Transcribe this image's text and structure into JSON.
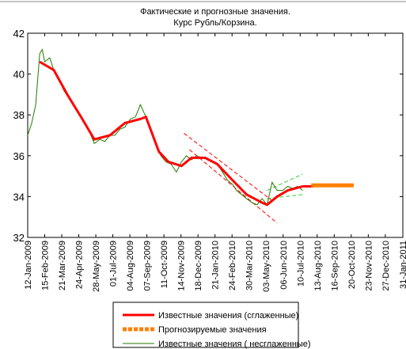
{
  "chart_data": {
    "type": "line",
    "title": [
      "Фактические и прогнозные значения.",
      "Курс Рубль/Корзина."
    ],
    "xlim": [
      "2009-01-12",
      "2011-01-31"
    ],
    "xticks": [
      {
        "value": "2009-01-12",
        "label": "12-Jan-2009"
      },
      {
        "value": "2009-02-15",
        "label": "15-Feb-2009"
      },
      {
        "value": "2009-03-21",
        "label": "21-Mar-2009"
      },
      {
        "value": "2009-04-24",
        "label": "24-Apr-2009"
      },
      {
        "value": "2009-05-28",
        "label": "28-May-2009"
      },
      {
        "value": "2009-07-01",
        "label": "01-Jul-2009"
      },
      {
        "value": "2009-08-04",
        "label": "04-Aug-2009"
      },
      {
        "value": "2009-09-07",
        "label": "07-Sep-2009"
      },
      {
        "value": "2009-10-11",
        "label": "11-Oct-2009"
      },
      {
        "value": "2009-11-14",
        "label": "14-Nov-2009"
      },
      {
        "value": "2009-12-18",
        "label": "18-Dec-2009"
      },
      {
        "value": "2010-01-21",
        "label": "21-Jan-2010"
      },
      {
        "value": "2010-02-24",
        "label": "24-Feb-2010"
      },
      {
        "value": "2010-03-30",
        "label": "30-Mar-2010"
      },
      {
        "value": "2010-05-03",
        "label": "03-May-2010"
      },
      {
        "value": "2010-06-06",
        "label": "06-Jun-2010"
      },
      {
        "value": "2010-07-10",
        "label": "10-Jul-2010"
      },
      {
        "value": "2010-08-13",
        "label": "13-Aug-2010"
      },
      {
        "value": "2010-09-16",
        "label": "16-Sep-2010"
      },
      {
        "value": "2010-10-20",
        "label": "20-Oct-2010"
      },
      {
        "value": "2010-11-23",
        "label": "23-Nov-2010"
      },
      {
        "value": "2010-12-27",
        "label": "27-Dec-2010"
      },
      {
        "value": "2011-01-31",
        "label": "31-Jan-2011"
      }
    ],
    "ylim": [
      32,
      42
    ],
    "yticks": [
      32,
      34,
      36,
      38,
      40,
      42
    ],
    "series": [
      {
        "name": "Известные значения (сглаженные)",
        "color": "#ff0000",
        "style": "solid",
        "width": 3,
        "x": [
          "2009-02-05",
          "2009-03-05",
          "2009-04-01",
          "2009-05-01",
          "2009-05-25",
          "2009-06-25",
          "2009-07-25",
          "2009-08-25",
          "2009-09-05",
          "2009-10-01",
          "2009-10-20",
          "2009-11-15",
          "2009-12-05",
          "2010-01-01",
          "2010-01-25",
          "2010-02-25",
          "2010-03-25",
          "2010-04-25",
          "2010-05-05",
          "2010-05-25",
          "2010-06-15",
          "2010-07-15",
          "2010-08-05"
        ],
        "values": [
          40.6,
          40.2,
          39,
          37.8,
          36.8,
          37,
          37.6,
          37.8,
          37.9,
          36.2,
          35.7,
          35.5,
          35.9,
          35.9,
          35.6,
          34.8,
          34.1,
          33.7,
          33.6,
          34,
          34.3,
          34.5,
          34.5
        ]
      },
      {
        "name": "Прогнозируемые значения",
        "color": "#ff8000",
        "style": "squares",
        "width": 5,
        "x": [
          "2010-08-05",
          "2010-08-12",
          "2010-08-19",
          "2010-08-26",
          "2010-09-02",
          "2010-09-09",
          "2010-09-16",
          "2010-09-23",
          "2010-09-30",
          "2010-10-07",
          "2010-10-14",
          "2010-10-21"
        ],
        "values": [
          34.55,
          34.55,
          34.55,
          34.55,
          34.55,
          34.55,
          34.55,
          34.55,
          34.55,
          34.55,
          34.55,
          34.55
        ]
      },
      {
        "name": "Известные значения ( несглаженные)",
        "color": "#217a00",
        "style": "solid",
        "width": 1,
        "x": [
          "2009-01-12",
          "2009-01-20",
          "2009-01-28",
          "2009-02-05",
          "2009-02-10",
          "2009-02-15",
          "2009-02-25",
          "2009-03-05",
          "2009-03-15",
          "2009-03-25",
          "2009-04-05",
          "2009-04-15",
          "2009-04-25",
          "2009-05-05",
          "2009-05-15",
          "2009-05-25",
          "2009-06-05",
          "2009-06-15",
          "2009-06-25",
          "2009-07-05",
          "2009-07-15",
          "2009-07-25",
          "2009-08-05",
          "2009-08-15",
          "2009-08-25",
          "2009-09-05",
          "2009-09-15",
          "2009-09-25",
          "2009-10-05",
          "2009-10-15",
          "2009-10-25",
          "2009-11-05",
          "2009-11-15",
          "2009-11-25",
          "2009-12-05",
          "2009-12-15",
          "2009-12-25",
          "2010-01-05",
          "2010-01-15",
          "2010-01-25",
          "2010-02-05",
          "2010-02-15",
          "2010-02-25",
          "2010-03-05",
          "2010-03-15",
          "2010-03-25",
          "2010-04-05",
          "2010-04-15",
          "2010-04-25",
          "2010-05-05",
          "2010-05-15",
          "2010-05-25",
          "2010-06-05",
          "2010-06-15",
          "2010-06-25",
          "2010-07-05",
          "2010-07-15"
        ],
        "values": [
          37,
          37.6,
          38.5,
          41,
          41.2,
          40.6,
          40.8,
          40.2,
          39.8,
          39.2,
          38.8,
          38.4,
          38,
          37.7,
          37.2,
          36.6,
          36.8,
          36.7,
          37,
          37,
          37.3,
          37.4,
          37.8,
          37.9,
          38.5,
          37.9,
          37.2,
          36.5,
          36,
          35.7,
          35.6,
          35.2,
          35.7,
          36,
          35.8,
          36,
          35.9,
          35.9,
          35.7,
          35.6,
          35.2,
          34.8,
          34.6,
          34.3,
          34.1,
          33.9,
          33.7,
          33.6,
          33.9,
          33.6,
          34.7,
          34.3,
          34.3,
          34.5,
          34.4,
          34.5,
          34.3
        ]
      }
    ],
    "bands": [
      {
        "color": "#ff0000",
        "x": [
          "2009-11-20",
          "2010-05-15"
        ],
        "values": [
          37.1,
          33.8
        ]
      },
      {
        "color": "#ff0000",
        "x": [
          "2009-12-01",
          "2010-05-25"
        ],
        "values": [
          36.3,
          32.7
        ]
      },
      {
        "color": "#33cc33",
        "x": [
          "2010-05-05",
          "2010-07-15"
        ],
        "values": [
          34.3,
          35.1
        ]
      },
      {
        "color": "#33cc33",
        "x": [
          "2010-05-05",
          "2010-07-15"
        ],
        "values": [
          33.9,
          34.1
        ]
      }
    ]
  }
}
